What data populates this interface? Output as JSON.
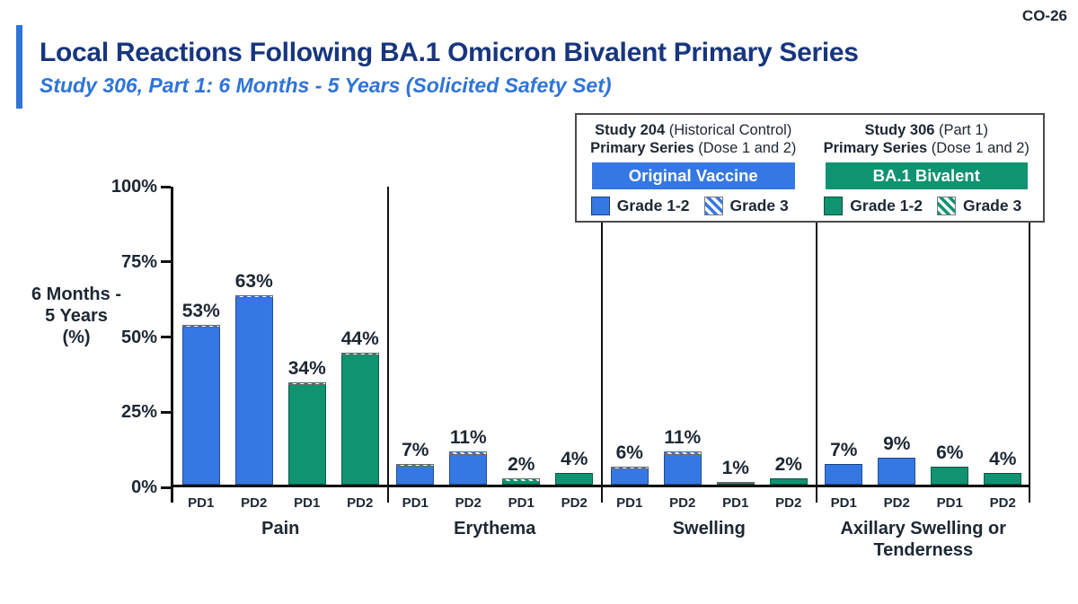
{
  "slide": {
    "code": "CO-26",
    "title": "Local Reactions Following BA.1 Omicron Bivalent Primary Series",
    "subtitle": "Study 306, Part 1: 6 Months - 5 Years (Solicited Safety Set)",
    "accent_color": "#2E74D9",
    "title_color": "#17367E",
    "text_color": "#1D2733"
  },
  "legend": {
    "groups": [
      {
        "study_bold": "Study 204",
        "study_rest": " (Historical Control)",
        "series_bold": "Primary Series",
        "series_rest": " (Dose 1 and 2)",
        "banner": "Original Vaccine",
        "banner_color": "#3578E3",
        "grade12_label": "Grade 1-2",
        "grade3_label": "Grade 3"
      },
      {
        "study_bold": "Study 306",
        "study_rest": " (Part 1)",
        "series_bold": "Primary Series",
        "series_rest": " (Dose 1 and 2)",
        "banner": "BA.1 Bivalent",
        "banner_color": "#0F9371",
        "grade12_label": "Grade 1-2",
        "grade3_label": "Grade 3"
      }
    ]
  },
  "chart_data": {
    "type": "bar",
    "stacked": true,
    "title": "Local Reactions Following BA.1 Omicron Bivalent Primary Series",
    "ylabel_lines": [
      "6 Months -",
      "5 Years",
      "(%)"
    ],
    "ylim": [
      0,
      100
    ],
    "yticks": [
      {
        "label": "0%",
        "value": 0
      },
      {
        "label": "25%",
        "value": 25
      },
      {
        "label": "50%",
        "value": 50
      },
      {
        "label": "75%",
        "value": 75
      },
      {
        "label": "100%",
        "value": 100
      }
    ],
    "series_colors": {
      "original": "#3578E3",
      "bivalent": "#0F9371"
    },
    "categories": [
      "Pain",
      "Erythema",
      "Swelling",
      "Axillary Swelling or Tenderness"
    ],
    "groups": [
      {
        "label": "Pain",
        "bars": [
          {
            "dose": "PD1",
            "arm": "original",
            "label": "53%",
            "total": 53,
            "grade3": 0.5
          },
          {
            "dose": "PD2",
            "arm": "original",
            "label": "63%",
            "total": 63,
            "grade3": 0.5
          },
          {
            "dose": "PD1",
            "arm": "bivalent",
            "label": "34%",
            "total": 34,
            "grade3": 0.5
          },
          {
            "dose": "PD2",
            "arm": "bivalent",
            "label": "44%",
            "total": 44,
            "grade3": 0.5
          }
        ]
      },
      {
        "label": "Erythema",
        "bars": [
          {
            "dose": "PD1",
            "arm": "original",
            "label": "7%",
            "total": 7,
            "grade3": 1
          },
          {
            "dose": "PD2",
            "arm": "original",
            "label": "11%",
            "total": 11,
            "grade3": 1
          },
          {
            "dose": "PD1",
            "arm": "bivalent",
            "label": "2%",
            "total": 2,
            "grade3": 1
          },
          {
            "dose": "PD2",
            "arm": "bivalent",
            "label": "4%",
            "total": 4,
            "grade3": 0
          }
        ]
      },
      {
        "label": "Swelling",
        "bars": [
          {
            "dose": "PD1",
            "arm": "original",
            "label": "6%",
            "total": 6,
            "grade3": 0.6
          },
          {
            "dose": "PD2",
            "arm": "original",
            "label": "11%",
            "total": 11,
            "grade3": 1
          },
          {
            "dose": "PD1",
            "arm": "bivalent",
            "label": "1%",
            "total": 1,
            "grade3": 0.6
          },
          {
            "dose": "PD2",
            "arm": "bivalent",
            "label": "2%",
            "total": 2,
            "grade3": 0
          }
        ]
      },
      {
        "label": "Axillary Swelling or Tenderness",
        "bars": [
          {
            "dose": "PD1",
            "arm": "original",
            "label": "7%",
            "total": 7,
            "grade3": 0
          },
          {
            "dose": "PD2",
            "arm": "original",
            "label": "9%",
            "total": 9,
            "grade3": 0
          },
          {
            "dose": "PD1",
            "arm": "bivalent",
            "label": "6%",
            "total": 6,
            "grade3": 0
          },
          {
            "dose": "PD2",
            "arm": "bivalent",
            "label": "4%",
            "total": 4,
            "grade3": 0
          }
        ]
      }
    ]
  }
}
